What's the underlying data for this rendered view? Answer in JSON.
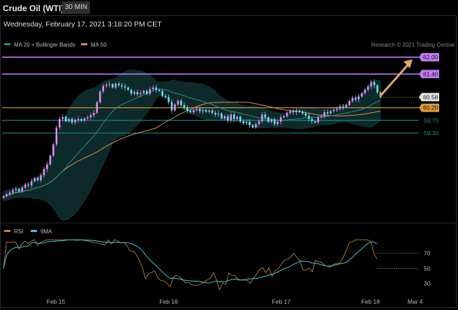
{
  "header": {
    "title": "Crude Oil (WTI)",
    "timeframe": "30 MIN",
    "datetime": "Wednesday, February 17, 2021 3:18:20 PM CET"
  },
  "colors": {
    "bull": "#e08cf2",
    "bear": "#64e6ee",
    "ma20": "#2a8f86",
    "ma50": "#c9925a",
    "band_fill": "#0f2d2d",
    "resistance": "#c07cf2",
    "support_orange": "#d99a40",
    "support_teal": "#1d8f8a",
    "rsi": "#b8813f",
    "rsi_ma": "#40c8d8",
    "arrow": "#e2a86a"
  },
  "chart_data": [
    {
      "type": "candlestick",
      "legend": [
        {
          "label": "MA 20 + Bollinger Bands",
          "color": "#1d8f8a"
        },
        {
          "label": "MA 50",
          "color": "#c9925a"
        }
      ],
      "credit": "Research © 2021 Trading Central",
      "ylim": [
        56.3,
        62.3
      ],
      "x_ticks": [
        {
          "label": "Feb 15",
          "pos": 22
        },
        {
          "label": "Feb 16",
          "pos": 70
        },
        {
          "label": "Feb 17",
          "pos": 118
        },
        {
          "label": "Feb 18",
          "pos": 156
        },
        {
          "label": "Mar 4",
          "pos": 175
        }
      ],
      "levels": [
        {
          "value": 62.0,
          "label": "62.00",
          "kind": "resistance"
        },
        {
          "value": 61.4,
          "label": "61.40",
          "kind": "resistance"
        },
        {
          "value": 60.2,
          "label": "60.20",
          "kind": "support_orange"
        },
        {
          "value": 59.75,
          "label": "59.75",
          "kind": "support_teal"
        },
        {
          "value": 59.3,
          "label": "59.30",
          "kind": "support_teal"
        }
      ],
      "last_price": {
        "value": 60.58,
        "label": "60.58"
      },
      "forecast_target": 62.0,
      "close": [
        57.05,
        57.12,
        57.18,
        57.26,
        57.3,
        57.22,
        57.36,
        57.46,
        57.44,
        57.58,
        57.7,
        57.62,
        57.8,
        58.02,
        58.18,
        58.5,
        58.9,
        59.5,
        59.8,
        59.88,
        59.72,
        59.8,
        59.68,
        59.76,
        59.8,
        59.74,
        59.82,
        59.86,
        59.94,
        60.02,
        60.4,
        60.78,
        60.98,
        61.02,
        61.04,
        60.92,
        61.06,
        61.0,
        60.96,
        60.92,
        60.84,
        60.7,
        60.76,
        60.68,
        60.72,
        60.8,
        60.7,
        60.86,
        60.92,
        60.84,
        60.8,
        60.62,
        60.58,
        60.4,
        60.1,
        60.32,
        60.45,
        60.3,
        60.2,
        60.1,
        60.04,
        60.12,
        60.16,
        60.08,
        60.12,
        60.06,
        60.1,
        60.02,
        59.96,
        60.0,
        59.82,
        59.9,
        59.74,
        59.96,
        59.8,
        59.88,
        59.72,
        59.65,
        59.7,
        59.58,
        59.5,
        59.62,
        59.72,
        59.96,
        59.86,
        59.7,
        59.78,
        59.62,
        59.7,
        59.86,
        59.9,
        60.02,
        60.08,
        60.04,
        60.1,
        60.06,
        60.0,
        59.92,
        59.8,
        59.72,
        59.68,
        59.86,
        59.9,
        60.04,
        60.0,
        60.08,
        60.12,
        60.16,
        60.24,
        60.22,
        60.3,
        60.44,
        60.56,
        60.5,
        60.6,
        60.72,
        60.84,
        60.96,
        61.12,
        61.0,
        60.74,
        60.58
      ],
      "rsi": {
        "legend": [
          {
            "label": "RSI",
            "color": "#b8813f"
          },
          {
            "label": "9MA",
            "color": "#40c8d8"
          }
        ],
        "ylim": [
          20,
          90
        ],
        "ticks": [
          {
            "value": 70,
            "label": "70"
          },
          {
            "value": 50,
            "label": "50"
          },
          {
            "value": 30,
            "label": "30"
          }
        ],
        "levels": [
          70,
          50
        ]
      }
    }
  ]
}
